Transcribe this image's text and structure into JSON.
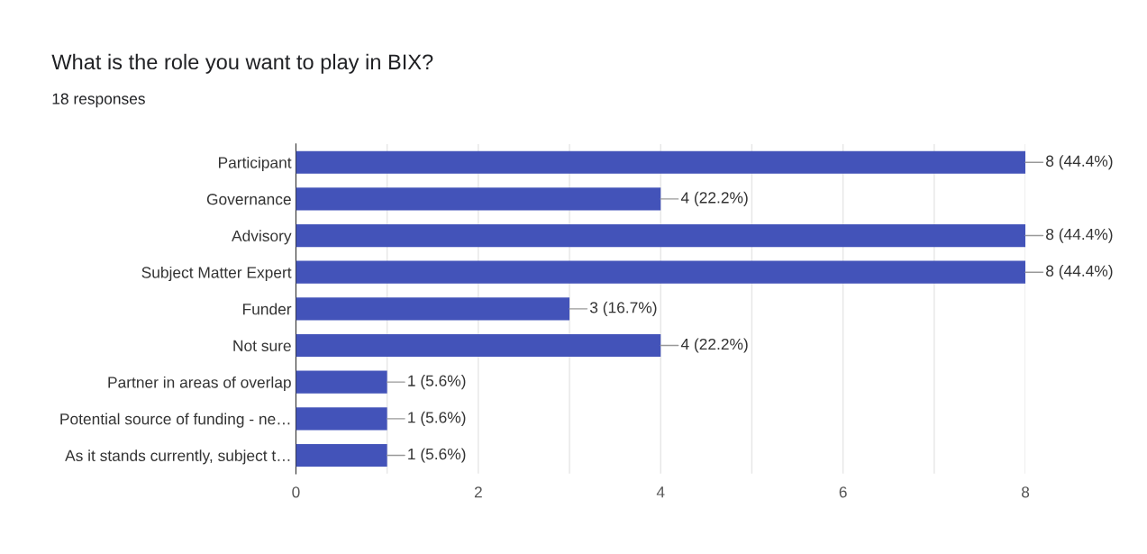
{
  "chart_data": {
    "type": "bar",
    "orientation": "horizontal",
    "title": "What is the role you want to play in BIX?",
    "subtitle": "18 responses",
    "categories": [
      "Participant",
      "Governance",
      "Advisory",
      "Subject Matter Expert",
      "Funder",
      "Not sure",
      "Partner in areas of overlap",
      "Potential source of funding - ne…",
      "As it stands currently, subject t…"
    ],
    "values": [
      8,
      4,
      8,
      8,
      3,
      4,
      1,
      1,
      1
    ],
    "value_labels": [
      "8 (44.4%)",
      "4 (22.2%)",
      "8 (44.4%)",
      "8 (44.4%)",
      "3 (16.7%)",
      "4 (22.2%)",
      "1 (5.6%)",
      "1 (5.6%)",
      "1 (5.6%)"
    ],
    "color": "#4353b9",
    "xlim": [
      0,
      8
    ],
    "xticks": [
      0,
      {
        "value": 1,
        "label": null
      },
      2,
      {
        "value": 3,
        "label": null
      },
      4,
      {
        "value": 5,
        "label": null
      },
      6,
      {
        "value": 7,
        "label": null
      },
      8
    ],
    "grid": "x",
    "legend": false
  }
}
